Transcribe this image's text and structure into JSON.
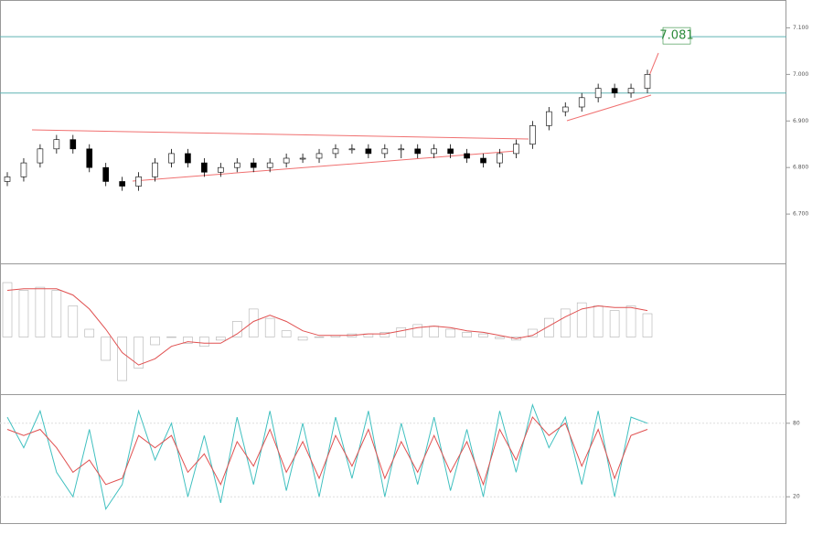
{
  "chart_data": [
    {
      "type": "candlestick",
      "open": [
        6.77,
        6.78,
        6.81,
        6.84,
        6.86,
        6.84,
        6.8,
        6.77,
        6.76,
        6.78,
        6.81,
        6.83,
        6.81,
        6.79,
        6.8,
        6.81,
        6.8,
        6.81,
        6.82,
        6.82,
        6.83,
        6.84,
        6.84,
        6.83,
        6.84,
        6.84,
        6.83,
        6.84,
        6.83,
        6.82,
        6.81,
        6.83,
        6.85,
        6.89,
        6.92,
        6.93,
        6.95,
        6.97,
        6.96,
        6.97
      ],
      "high": [
        6.79,
        6.82,
        6.85,
        6.87,
        6.87,
        6.85,
        6.81,
        6.78,
        6.79,
        6.82,
        6.84,
        6.84,
        6.82,
        6.81,
        6.82,
        6.82,
        6.82,
        6.83,
        6.83,
        6.84,
        6.85,
        6.85,
        6.85,
        6.85,
        6.85,
        6.85,
        6.85,
        6.85,
        6.84,
        6.83,
        6.84,
        6.86,
        6.9,
        6.93,
        6.94,
        6.96,
        6.98,
        6.98,
        6.98,
        7.01
      ],
      "low": [
        6.76,
        6.77,
        6.8,
        6.83,
        6.83,
        6.79,
        6.76,
        6.75,
        6.75,
        6.77,
        6.8,
        6.8,
        6.78,
        6.78,
        6.79,
        6.79,
        6.79,
        6.8,
        6.81,
        6.81,
        6.82,
        6.83,
        6.82,
        6.82,
        6.82,
        6.82,
        6.82,
        6.82,
        6.81,
        6.8,
        6.8,
        6.82,
        6.84,
        6.88,
        6.91,
        6.92,
        6.94,
        6.95,
        6.95,
        6.96
      ],
      "close": [
        6.78,
        6.81,
        6.84,
        6.86,
        6.84,
        6.8,
        6.77,
        6.76,
        6.78,
        6.81,
        6.83,
        6.81,
        6.79,
        6.8,
        6.81,
        6.8,
        6.81,
        6.82,
        6.82,
        6.83,
        6.84,
        6.84,
        6.83,
        6.84,
        6.84,
        6.83,
        6.84,
        6.83,
        6.82,
        6.81,
        6.83,
        6.85,
        6.89,
        6.92,
        6.93,
        6.95,
        6.97,
        6.96,
        6.97,
        7.0
      ],
      "ylim": [
        6.6,
        7.15
      ],
      "yticks": [
        {
          "value": 6.7,
          "label": "6.700"
        },
        {
          "value": 6.8,
          "label": "6.800"
        },
        {
          "value": 6.9,
          "label": "6.900"
        },
        {
          "value": 7.0,
          "label": "7.000"
        },
        {
          "value": 7.1,
          "label": "7.100"
        }
      ],
      "hlines": [
        7.081,
        6.96
      ],
      "annotation": "7.081",
      "level_color": "#5fb3b3"
    },
    {
      "type": "bar",
      "values": [
        0.035,
        0.03,
        0.032,
        0.03,
        0.02,
        0.005,
        -0.015,
        -0.028,
        -0.02,
        -0.005,
        0.0,
        -0.004,
        -0.006,
        -0.002,
        0.01,
        0.018,
        0.012,
        0.004,
        -0.002,
        0.0,
        0.001,
        0.002,
        0.002,
        0.003,
        0.006,
        0.008,
        0.007,
        0.005,
        0.003,
        0.002,
        -0.001,
        -0.002,
        0.005,
        0.012,
        0.018,
        0.022,
        0.02,
        0.017,
        0.02,
        0.015
      ],
      "signal": [
        0.03,
        0.031,
        0.031,
        0.031,
        0.027,
        0.018,
        0.005,
        -0.01,
        -0.018,
        -0.014,
        -0.006,
        -0.003,
        -0.004,
        -0.004,
        0.002,
        0.01,
        0.014,
        0.01,
        0.004,
        0.001,
        0.001,
        0.001,
        0.002,
        0.002,
        0.004,
        0.006,
        0.007,
        0.006,
        0.004,
        0.003,
        0.001,
        -0.001,
        0.001,
        0.007,
        0.013,
        0.018,
        0.02,
        0.019,
        0.019,
        0.017
      ],
      "color": "#b0b0b0",
      "signal_color": "#e05050",
      "ylim": [
        -0.035,
        0.045
      ]
    },
    {
      "type": "line",
      "series": [
        {
          "color": "#40c0c0",
          "values": [
            85,
            60,
            90,
            40,
            20,
            75,
            10,
            30,
            90,
            50,
            80,
            20,
            70,
            15,
            85,
            30,
            90,
            25,
            80,
            20,
            85,
            35,
            90,
            20,
            80,
            30,
            85,
            25,
            75,
            20,
            90,
            40,
            95,
            60,
            85,
            30,
            90,
            20,
            85,
            80
          ]
        },
        {
          "color": "#e05050",
          "values": [
            75,
            70,
            75,
            60,
            40,
            50,
            30,
            35,
            70,
            60,
            70,
            40,
            55,
            30,
            65,
            45,
            75,
            40,
            65,
            35,
            70,
            45,
            75,
            35,
            65,
            40,
            70,
            40,
            65,
            30,
            75,
            50,
            85,
            70,
            80,
            45,
            75,
            35,
            70,
            75
          ]
        }
      ],
      "ylim": [
        0,
        100
      ],
      "yticks": [
        20,
        80
      ]
    }
  ]
}
